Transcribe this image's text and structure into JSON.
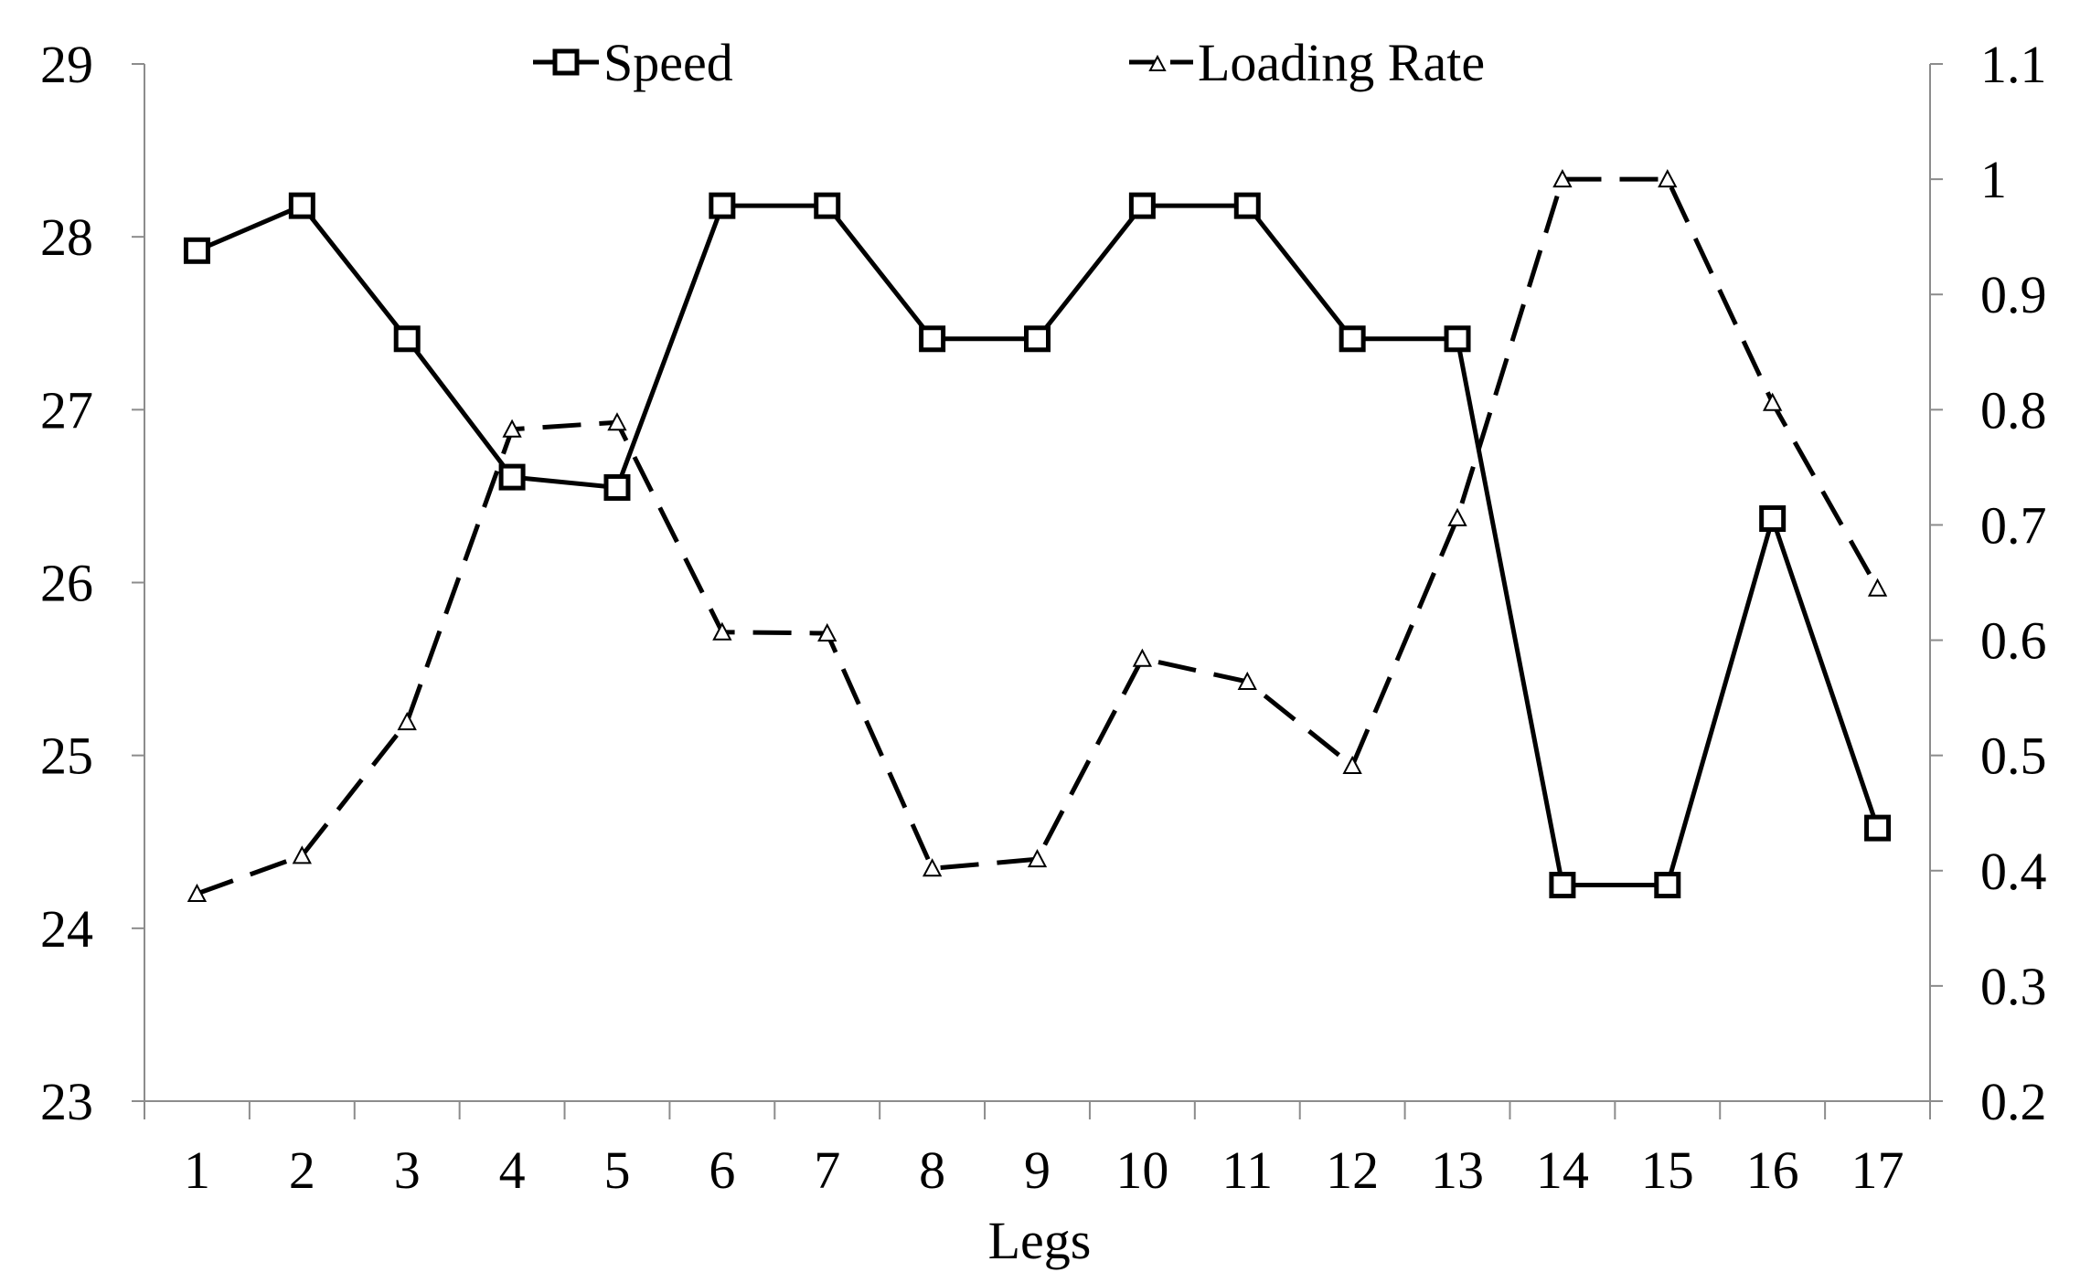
{
  "chart_data": {
    "type": "line",
    "xlabel": "Legs",
    "categories": [
      "1",
      "2",
      "3",
      "4",
      "5",
      "6",
      "7",
      "8",
      "9",
      "10",
      "11",
      "12",
      "13",
      "14",
      "15",
      "16",
      "17"
    ],
    "y_left": {
      "ylim": [
        23,
        29
      ],
      "ticks": [
        "23",
        "24",
        "25",
        "26",
        "27",
        "28",
        "29"
      ]
    },
    "y_right": {
      "ylim": [
        0.2,
        1.1
      ],
      "ticks": [
        "0.2",
        "0.3",
        "0.4",
        "0.5",
        "0.6",
        "0.7",
        "0.8",
        "0.9",
        "1",
        "1.1"
      ]
    },
    "series": [
      {
        "name": "Speed",
        "axis": "left",
        "marker": "square",
        "line_style": "solid",
        "values": [
          27.92,
          28.18,
          27.41,
          26.61,
          26.55,
          28.18,
          28.18,
          27.41,
          27.41,
          28.18,
          28.18,
          27.41,
          27.41,
          24.25,
          24.25,
          26.37,
          24.58
        ]
      },
      {
        "name": "Loading Rate",
        "axis": "right",
        "marker": "triangle",
        "line_style": "dashed",
        "values": [
          0.38,
          0.413,
          0.529,
          0.783,
          0.789,
          0.607,
          0.606,
          0.402,
          0.41,
          0.584,
          0.564,
          0.491,
          0.706,
          1.0,
          1.0,
          0.806,
          0.645
        ]
      }
    ],
    "grid": false,
    "legend": "top-center",
    "colors": {
      "line": "#000000",
      "axis": "#8c8c8c",
      "marker_fill": "#ffffff"
    }
  }
}
